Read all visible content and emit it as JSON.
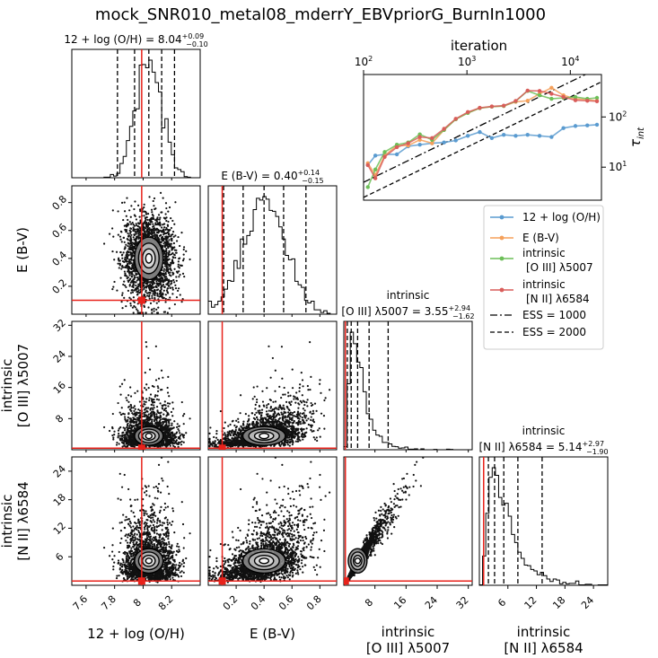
{
  "figure": {
    "title": "mock_SNR010_metal08_mderrY_EBVpriorG_BurnIn1000"
  },
  "chart_data": [
    {
      "type": "corner",
      "parameters": [
        {
          "key": "oh",
          "axis_label": "12 + log(O/H)",
          "label_lines": [
            "12 + log (O/H)"
          ],
          "range": [
            7.5,
            8.4
          ],
          "ticks": [
            7.6,
            7.8,
            8.0,
            8.2
          ],
          "truth": 7.99,
          "quantiles": [
            7.82,
            7.94,
            8.04,
            8.13,
            8.22
          ],
          "summary": {
            "prefix": "12 + log (O/H) = ",
            "value": "8.04",
            "plus": "+0.09",
            "minus": "−0.10"
          }
        },
        {
          "key": "ebv",
          "axis_label": "E(B-V)",
          "label_lines": [
            "E (B-V)"
          ],
          "range": [
            0.0,
            0.92
          ],
          "ticks": [
            0.2,
            0.4,
            0.6,
            0.8
          ],
          "truth": 0.1,
          "quantiles": [
            0.11,
            0.25,
            0.4,
            0.54,
            0.7
          ],
          "summary": {
            "prefix": "E (B-V) = ",
            "value": "0.40",
            "plus": "+0.14",
            "minus": "−0.15"
          }
        },
        {
          "key": "o3",
          "axis_label": "intrinsic [O III] λ5007",
          "label_lines": [
            "intrinsic",
            "[O III] λ5007"
          ],
          "range": [
            0.0,
            33.0
          ],
          "ticks": [
            8,
            16,
            24,
            32
          ],
          "truth": 0.4,
          "quantiles": [
            0.9,
            1.9,
            3.55,
            6.5,
            11.4
          ],
          "summary": {
            "line1": "intrinsic",
            "prefix": "[O III] λ5007 = ",
            "value": "3.55",
            "plus": "+2.94",
            "minus": "−1.62"
          }
        },
        {
          "key": "n2",
          "axis_label": "intrinsic [N II] λ6584",
          "label_lines": [
            "intrinsic",
            "[N II] λ6584"
          ],
          "range": [
            0.0,
            27.0
          ],
          "ticks": [
            6,
            12,
            18,
            24
          ],
          "truth": 0.9,
          "quantiles": [
            1.9,
            3.2,
            5.14,
            8.1,
            13.2
          ],
          "summary": {
            "line1": "intrinsic",
            "prefix": "[N II] λ6584 = ",
            "value": "5.14",
            "plus": "+2.97",
            "minus": "−1.90"
          }
        }
      ],
      "truth_color": "#e8221b",
      "ebv_ytick_labels": [
        "0.2",
        "0.4",
        "0.6",
        "0.8"
      ],
      "o3_ytick_labels": [
        "8",
        "16",
        "24",
        "32"
      ],
      "n2_ytick_labels": [
        "6",
        "12",
        "18",
        "24"
      ]
    },
    {
      "type": "line",
      "title": "iteration",
      "xscale": "log",
      "yscale": "log",
      "x_tick_labels": [
        "10",
        "10",
        "10"
      ],
      "x_tick_exponents": [
        "2",
        "3",
        "4"
      ],
      "x_range": [
        100,
        20000
      ],
      "y_range": [
        2.2,
        700
      ],
      "y_tick_labels": [
        "10",
        "10"
      ],
      "y_tick_exponents": [
        "1",
        "2"
      ],
      "ylabel": "τ",
      "ylabel_sub": "int",
      "x": [
        110,
        130,
        160,
        210,
        270,
        350,
        460,
        600,
        780,
        1020,
        1330,
        1740,
        2270,
        2960,
        3860,
        5040,
        6580,
        8580,
        11200,
        14600,
        18100
      ],
      "series": [
        {
          "name": "12 + log (O/H)",
          "legend_lines": [
            "12 + log (O/H)"
          ],
          "color": "#5a9bd0",
          "values": [
            11,
            17,
            18,
            18,
            26,
            28,
            30,
            31,
            34,
            42,
            50,
            38,
            44,
            42,
            44,
            42,
            40,
            60,
            66,
            68,
            70
          ]
        },
        {
          "name": "E (B-V)",
          "legend_lines": [
            "E (B-V)"
          ],
          "color": "#f5a05a",
          "values": [
            12,
            7,
            17,
            27,
            27,
            35,
            30,
            55,
            90,
            120,
            150,
            160,
            165,
            200,
            210,
            290,
            380,
            270,
            230,
            220,
            210
          ]
        },
        {
          "name": "intrinsic [O III] λ5007",
          "legend_lines": [
            "intrinsic",
            "[O III] λ5007"
          ],
          "color": "#6dbf58",
          "values": [
            4,
            9,
            20,
            28,
            31,
            45,
            35,
            55,
            90,
            120,
            150,
            160,
            165,
            205,
            330,
            270,
            230,
            240,
            250,
            230,
            240
          ]
        },
        {
          "name": "intrinsic [N II] λ6584",
          "legend_lines": [
            "intrinsic",
            "[N II] λ6584"
          ],
          "color": "#d95d5a",
          "values": [
            11,
            6,
            16,
            25,
            30,
            40,
            38,
            58,
            92,
            125,
            152,
            162,
            168,
            208,
            335,
            330,
            290,
            250,
            215,
            210,
            205
          ]
        }
      ],
      "reference_lines": [
        {
          "name": "ESS = 1000",
          "style": "dashdot",
          "divisor": 1000
        },
        {
          "name": "ESS = 2000",
          "style": "dashed",
          "divisor": 2000
        }
      ]
    }
  ]
}
